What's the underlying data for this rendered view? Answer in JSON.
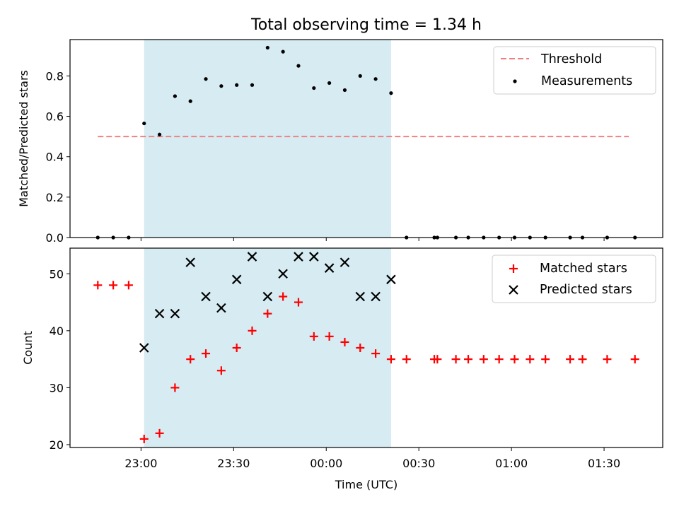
{
  "chart_data": [
    {
      "type": "scatter",
      "title": "Total observing time = 1.34 h",
      "ylabel": "Matched/Predicted stars",
      "xlabel": "",
      "ylim": [
        0,
        0.98
      ],
      "yticks": [
        "0.0",
        "0.2",
        "0.4",
        "0.6",
        "0.8"
      ],
      "ytick_values": [
        0,
        0.2,
        0.4,
        0.6,
        0.8
      ],
      "legend_position": "top-right",
      "highlight_span": [
        "23:01",
        "00:21"
      ],
      "threshold": {
        "name": "Threshold",
        "value": 0.5,
        "x_range": [
          "22:46",
          "01:38"
        ],
        "color": "#f08080"
      },
      "series": [
        {
          "name": "Measurements",
          "color": "#000000",
          "x": [
            "22:46",
            "22:51",
            "22:56",
            "23:01",
            "23:06",
            "23:11",
            "23:16",
            "23:21",
            "23:26",
            "23:31",
            "23:36",
            "23:41",
            "23:46",
            "23:51",
            "23:56",
            "00:01",
            "00:06",
            "00:11",
            "00:16",
            "00:21",
            "00:26",
            "00:35",
            "00:36",
            "00:42",
            "00:46",
            "00:51",
            "00:56",
            "01:01",
            "01:06",
            "01:11",
            "01:19",
            "01:23",
            "01:31",
            "01:40"
          ],
          "values": [
            0,
            0,
            0,
            0.565,
            0.51,
            0.7,
            0.675,
            0.785,
            0.75,
            0.755,
            0.755,
            0.94,
            0.92,
            0.85,
            0.74,
            0.765,
            0.73,
            0.8,
            0.785,
            0.715,
            0,
            0,
            0,
            0,
            0,
            0,
            0,
            0,
            0,
            0,
            0,
            0,
            0,
            0
          ]
        }
      ]
    },
    {
      "type": "scatter",
      "ylabel": "Count",
      "xlabel": "Time (UTC)",
      "ylim": [
        19.5,
        54.5
      ],
      "yticks": [
        "20",
        "30",
        "40",
        "50"
      ],
      "ytick_values": [
        20,
        30,
        40,
        50
      ],
      "xticks": [
        "23:00",
        "23:30",
        "00:00",
        "00:30",
        "01:00",
        "01:30"
      ],
      "xlim": [
        "22:37",
        "01:49"
      ],
      "legend_position": "top-right",
      "highlight_span": [
        "23:01",
        "00:21"
      ],
      "series": [
        {
          "name": "Matched stars",
          "color": "#ff0000",
          "x": [
            "22:46",
            "22:51",
            "22:56",
            "23:01",
            "23:06",
            "23:11",
            "23:16",
            "23:21",
            "23:26",
            "23:31",
            "23:36",
            "23:41",
            "23:46",
            "23:51",
            "23:56",
            "00:01",
            "00:06",
            "00:11",
            "00:16",
            "00:21",
            "00:26",
            "00:35",
            "00:36",
            "00:42",
            "00:46",
            "00:51",
            "00:56",
            "01:01",
            "01:06",
            "01:11",
            "01:19",
            "01:23",
            "01:31",
            "01:40"
          ],
          "values": [
            48,
            48,
            48,
            21,
            22,
            30,
            35,
            36,
            33,
            37,
            40,
            43,
            46,
            45,
            39,
            39,
            38,
            37,
            36,
            35,
            35,
            35,
            35,
            35,
            35,
            35,
            35,
            35,
            35,
            35,
            35,
            35,
            35,
            35
          ]
        },
        {
          "name": "Predicted stars",
          "color": "#000000",
          "x": [
            "23:01",
            "23:06",
            "23:11",
            "23:16",
            "23:21",
            "23:26",
            "23:31",
            "23:36",
            "23:41",
            "23:46",
            "23:51",
            "23:56",
            "00:01",
            "00:06",
            "00:11",
            "00:16",
            "00:21"
          ],
          "values": [
            37,
            43,
            43,
            52,
            46,
            44,
            49,
            53,
            46,
            50,
            53,
            53,
            51,
            52,
            46,
            46,
            49
          ]
        }
      ]
    }
  ]
}
